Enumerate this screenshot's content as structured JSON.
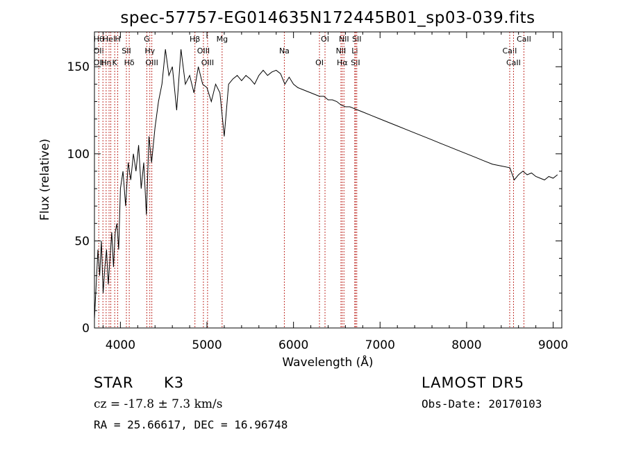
{
  "chart_data": {
    "type": "line",
    "title": "spec-57757-EG014635N172445B01_sp03-039.fits",
    "xlabel": "Wavelength (Å)",
    "ylabel": "Flux (relative)",
    "xlim": [
      3700,
      9100
    ],
    "ylim": [
      0,
      170
    ],
    "xticks": [
      4000,
      5000,
      6000,
      7000,
      8000,
      9000
    ],
    "yticks": [
      0,
      50,
      100,
      150
    ],
    "grid": false,
    "series": [
      {
        "x": [
          3700,
          3720,
          3740,
          3760,
          3780,
          3800,
          3820,
          3840,
          3860,
          3880,
          3900,
          3920,
          3940,
          3960,
          3980,
          4000,
          4030,
          4060,
          4090,
          4120,
          4150,
          4180,
          4210,
          4240,
          4270,
          4300,
          4330,
          4360,
          4400,
          4440,
          4480,
          4520,
          4560,
          4600,
          4650,
          4700,
          4750,
          4800,
          4850,
          4900,
          4950,
          5000,
          5050,
          5100,
          5150,
          5200,
          5250,
          5300,
          5350,
          5400,
          5450,
          5500,
          5550,
          5600,
          5650,
          5700,
          5750,
          5800,
          5850,
          5900,
          5950,
          6000,
          6050,
          6100,
          6150,
          6200,
          6250,
          6300,
          6350,
          6400,
          6450,
          6500,
          6550,
          6600,
          6650,
          6700,
          6750,
          6800,
          6900,
          7000,
          7100,
          7200,
          7300,
          7400,
          7500,
          7600,
          7700,
          7800,
          7900,
          8000,
          8100,
          8200,
          8300,
          8400,
          8500,
          8550,
          8600,
          8650,
          8700,
          8750,
          8800,
          8850,
          8900,
          8950,
          9000,
          9050
        ],
        "y": [
          5,
          25,
          45,
          30,
          50,
          20,
          35,
          45,
          25,
          40,
          55,
          35,
          55,
          60,
          45,
          80,
          90,
          70,
          95,
          85,
          100,
          90,
          105,
          80,
          95,
          65,
          110,
          95,
          115,
          130,
          140,
          160,
          145,
          150,
          125,
          160,
          140,
          145,
          135,
          150,
          140,
          138,
          130,
          140,
          135,
          110,
          140,
          143,
          145,
          142,
          145,
          143,
          140,
          145,
          148,
          145,
          147,
          148,
          146,
          140,
          144,
          140,
          138,
          137,
          136,
          135,
          134,
          133,
          133,
          131,
          131,
          130,
          128,
          127,
          127,
          126,
          125,
          124,
          122,
          120,
          118,
          116,
          114,
          112,
          110,
          108,
          106,
          104,
          102,
          100,
          98,
          96,
          94,
          93,
          92,
          85,
          88,
          90,
          88,
          89,
          87,
          86,
          85,
          87,
          86,
          88
        ]
      }
    ],
    "lines": [
      {
        "x": 3750,
        "labels": [
          "Hθ",
          "OII",
          "OII"
        ]
      },
      {
        "x": 3798,
        "labels": []
      },
      {
        "x": 3835,
        "labels": [
          "Hη"
        ]
      },
      {
        "x": 3869,
        "labels": [
          "HeI"
        ]
      },
      {
        "x": 3889,
        "labels": []
      },
      {
        "x": 3934,
        "labels": [
          "K"
        ]
      },
      {
        "x": 3969,
        "labels": [
          "H"
        ]
      },
      {
        "x": 4069,
        "labels": [
          "SII"
        ]
      },
      {
        "x": 4102,
        "labels": [
          "Hδ"
        ]
      },
      {
        "x": 4305,
        "labels": [
          "G"
        ]
      },
      {
        "x": 4340,
        "labels": [
          "Hγ"
        ]
      },
      {
        "x": 4363,
        "labels": [
          "OIII"
        ]
      },
      {
        "x": 4861,
        "labels": [
          "Hβ"
        ]
      },
      {
        "x": 4959,
        "labels": [
          "OIII"
        ]
      },
      {
        "x": 5007,
        "labels": [
          "OIII"
        ]
      },
      {
        "x": 5175,
        "labels": [
          "Mg"
        ]
      },
      {
        "x": 5894,
        "labels": [
          "Na"
        ]
      },
      {
        "x": 6300,
        "labels": [
          "OI"
        ]
      },
      {
        "x": 6364,
        "labels": [
          "OI"
        ]
      },
      {
        "x": 6548,
        "labels": [
          "NII"
        ]
      },
      {
        "x": 6563,
        "labels": [
          "Hα"
        ]
      },
      {
        "x": 6583,
        "labels": [
          "NII"
        ]
      },
      {
        "x": 6708,
        "labels": [
          "Li"
        ]
      },
      {
        "x": 6716,
        "labels": [
          "SII"
        ]
      },
      {
        "x": 6731,
        "labels": [
          "SII"
        ]
      },
      {
        "x": 8498,
        "labels": [
          "CaII"
        ]
      },
      {
        "x": 8542,
        "labels": [
          "CaII"
        ]
      },
      {
        "x": 8662,
        "labels": [
          "CaII"
        ]
      }
    ]
  },
  "info": {
    "class": "STAR",
    "subclass": "K3",
    "survey": "LAMOST DR5",
    "cz": "cz = -17.8 ± 7.3 km/s",
    "obs_date": "Obs-Date: 20170103",
    "coords": "RA =  25.66617, DEC =  16.96748"
  },
  "colors": {
    "line_marker": "#c0302a",
    "spectrum": "#000000"
  }
}
